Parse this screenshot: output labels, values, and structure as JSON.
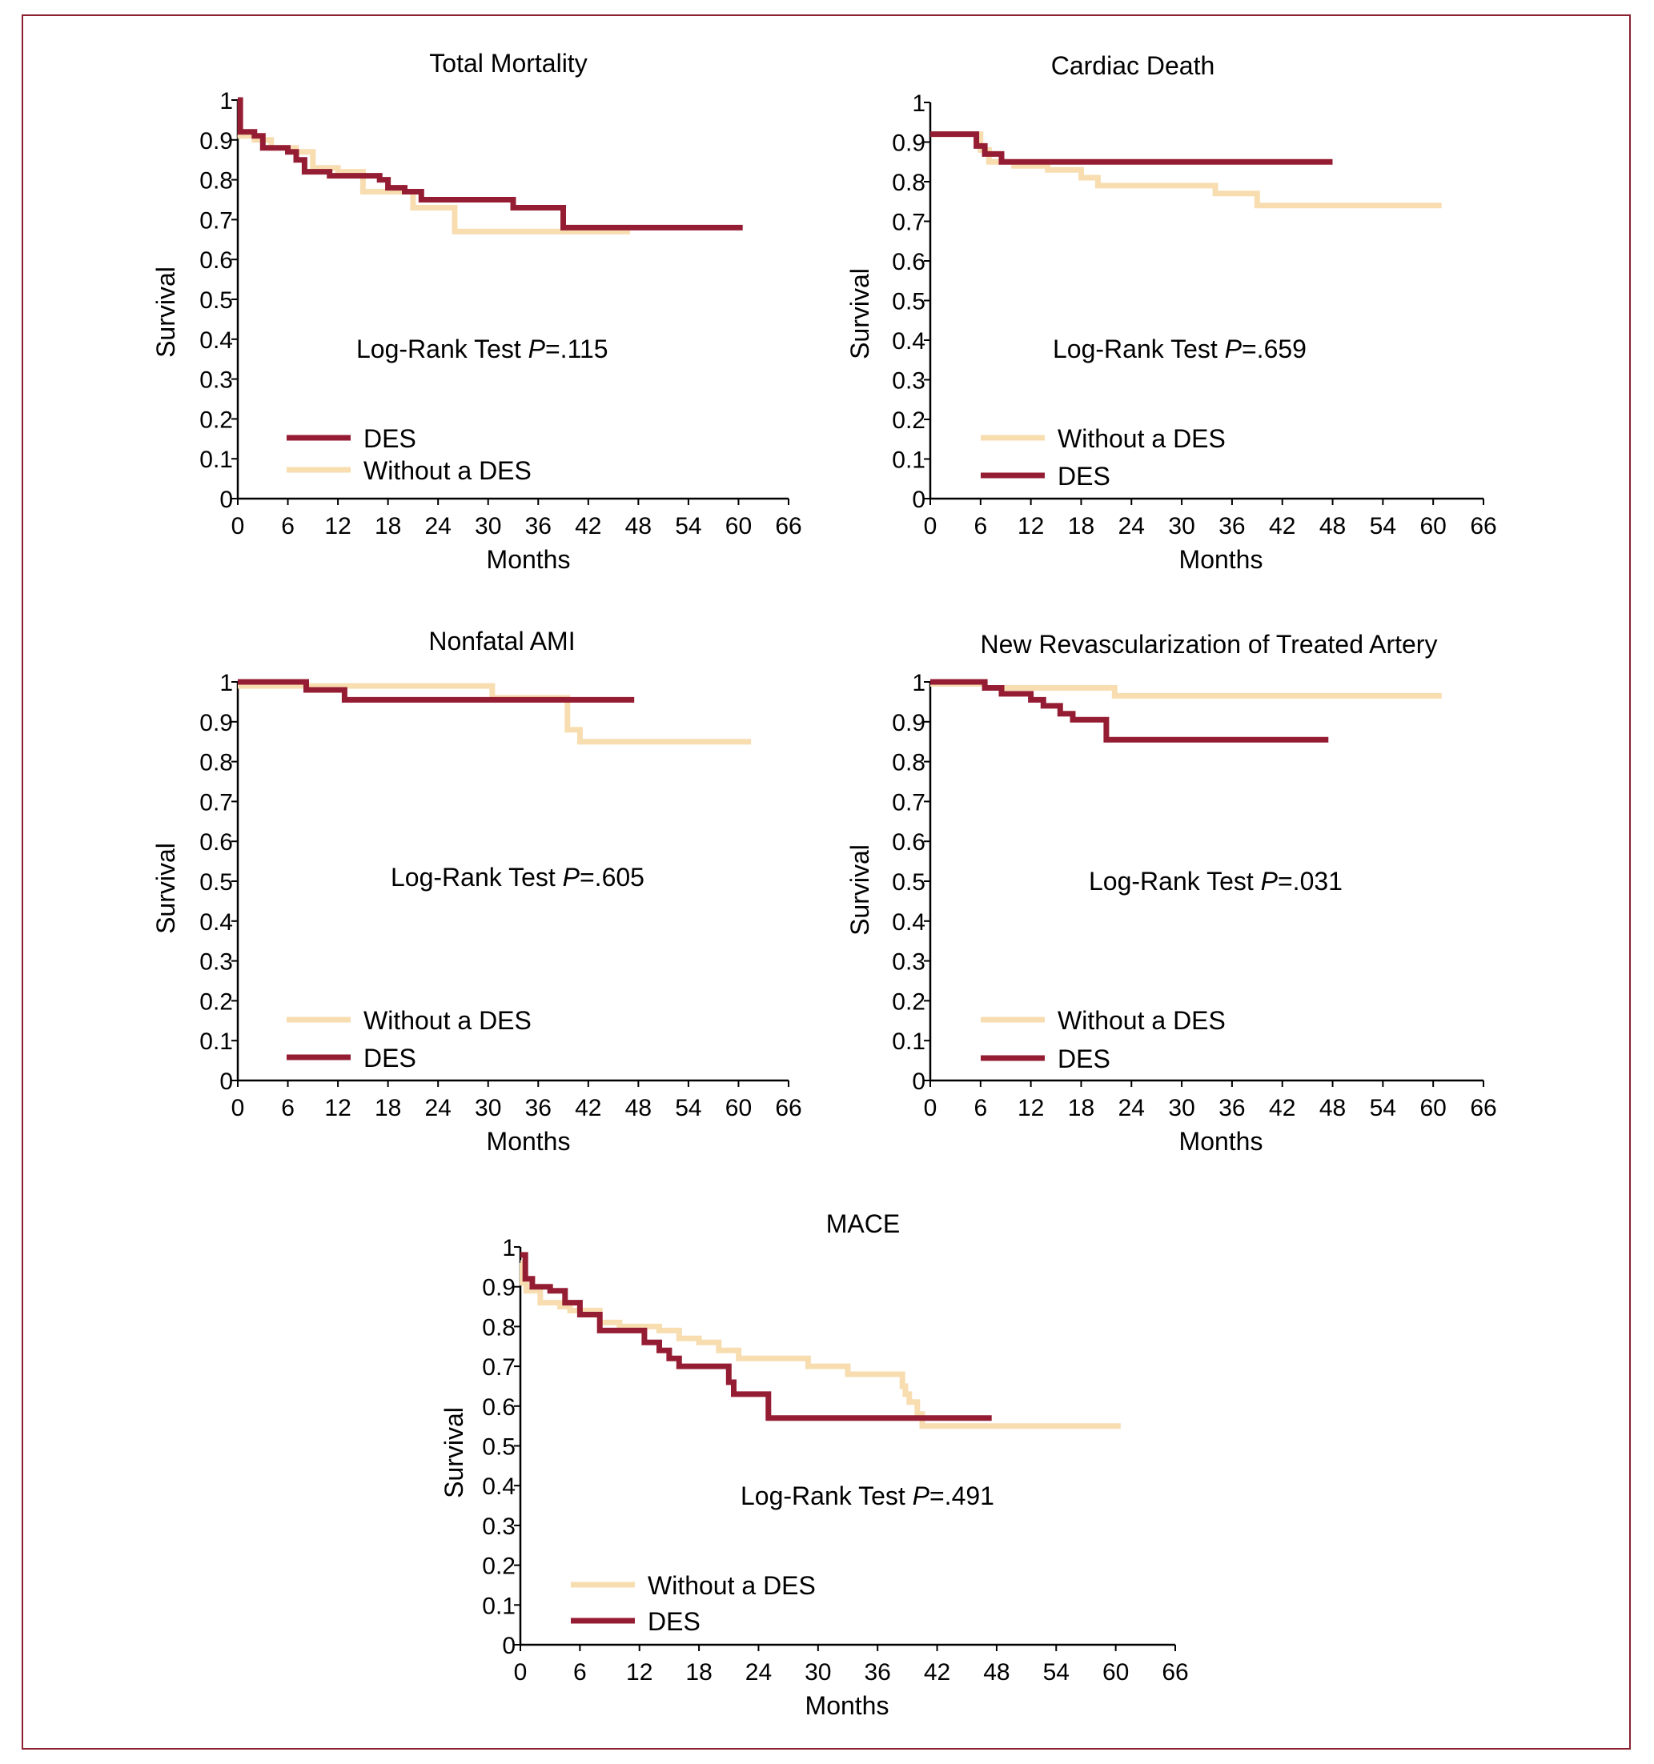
{
  "figure": {
    "border_color": "#8b2131",
    "series_colors": {
      "DES": "#951d33",
      "Without a DES": "#f7ddb0"
    }
  },
  "chart_data": [
    {
      "id": "total-mortality",
      "type": "line",
      "step": true,
      "title": "Total Mortality",
      "xlabel": "Months",
      "ylabel": "Survival",
      "xlim": [
        0,
        66
      ],
      "ylim": [
        0,
        1
      ],
      "xticks": [
        0,
        6,
        12,
        18,
        24,
        30,
        36,
        42,
        48,
        54,
        60,
        66
      ],
      "yticks": [
        "0",
        "0.1",
        "0.2",
        "0.3",
        "0.4",
        "0.5",
        "0.6",
        "0.7",
        "0.8",
        "0.9",
        "1"
      ],
      "annotation": {
        "prefix": "Log-Rank Test ",
        "p": "P",
        "value": "=.115"
      },
      "legend": {
        "placement": "bottom-left",
        "order": [
          "DES",
          "Without a DES"
        ]
      },
      "series": [
        {
          "name": "Without a DES",
          "x": [
            0,
            0.3,
            2,
            4,
            7,
            9,
            12,
            15,
            17,
            19,
            21,
            26,
            32,
            47
          ],
          "y": [
            1,
            0.91,
            0.9,
            0.88,
            0.87,
            0.83,
            0.82,
            0.77,
            0.77,
            0.77,
            0.73,
            0.67,
            0.67,
            0.67
          ]
        },
        {
          "name": "DES",
          "x": [
            0,
            0.3,
            2,
            3,
            6,
            7,
            8,
            11,
            17,
            18,
            20,
            22,
            33,
            39,
            60.5
          ],
          "y": [
            1,
            0.92,
            0.91,
            0.88,
            0.87,
            0.85,
            0.82,
            0.81,
            0.8,
            0.78,
            0.77,
            0.75,
            0.73,
            0.68,
            0.68
          ]
        }
      ]
    },
    {
      "id": "cardiac-death",
      "type": "line",
      "step": true,
      "title": "Cardiac Death",
      "xlabel": "Months",
      "ylabel": "Survival",
      "xlim": [
        0,
        66
      ],
      "ylim": [
        0,
        1
      ],
      "xticks": [
        0,
        6,
        12,
        18,
        24,
        30,
        36,
        42,
        48,
        54,
        60,
        66
      ],
      "yticks": [
        "0",
        "0.1",
        "0.2",
        "0.3",
        "0.4",
        "0.5",
        "0.6",
        "0.7",
        "0.8",
        "0.9",
        "1"
      ],
      "annotation": {
        "prefix": "Log-Rank Test ",
        "p": "P",
        "value": "=.659"
      },
      "legend": {
        "placement": "bottom-left",
        "order": [
          "Without a DES",
          "DES"
        ]
      },
      "series": [
        {
          "name": "Without a DES",
          "x": [
            0,
            6,
            7,
            10,
            14,
            18,
            20,
            34,
            39,
            61
          ],
          "y": [
            0.92,
            0.88,
            0.85,
            0.84,
            0.83,
            0.81,
            0.79,
            0.77,
            0.74,
            0.74
          ]
        },
        {
          "name": "DES",
          "x": [
            0,
            5.5,
            6.5,
            8.5,
            48
          ],
          "y": [
            0.92,
            0.89,
            0.87,
            0.85,
            0.85
          ]
        }
      ]
    },
    {
      "id": "nonfatal-ami",
      "type": "line",
      "step": true,
      "title": "Nonfatal AMI",
      "xlabel": "Months",
      "ylabel": "Survival",
      "xlim": [
        0,
        66
      ],
      "ylim": [
        0,
        1
      ],
      "xticks": [
        0,
        6,
        12,
        18,
        24,
        30,
        36,
        42,
        48,
        54,
        60,
        66
      ],
      "yticks": [
        "0",
        "0.1",
        "0.2",
        "0.3",
        "0.4",
        "0.5",
        "0.6",
        "0.7",
        "0.8",
        "0.9",
        "1"
      ],
      "annotation": {
        "prefix": "Log-Rank Test ",
        "p": "P",
        "value": "=.605"
      },
      "legend": {
        "placement": "bottom-left",
        "order": [
          "Without a DES",
          "DES"
        ]
      },
      "series": [
        {
          "name": "Without a DES",
          "x": [
            0,
            8.5,
            30.5,
            39.5,
            41,
            61.5
          ],
          "y": [
            0.99,
            0.99,
            0.96,
            0.88,
            0.85,
            0.85
          ]
        },
        {
          "name": "DES",
          "x": [
            0,
            8.2,
            12.8,
            47.5
          ],
          "y": [
            1,
            0.98,
            0.955,
            0.955
          ]
        }
      ]
    },
    {
      "id": "new-revascularization",
      "type": "line",
      "step": true,
      "title": "New Revascularization of Treated Artery",
      "xlabel": "Months",
      "ylabel": "Survival",
      "xlim": [
        0,
        66
      ],
      "ylim": [
        0,
        1
      ],
      "xticks": [
        0,
        6,
        12,
        18,
        24,
        30,
        36,
        42,
        48,
        54,
        60,
        66
      ],
      "yticks": [
        "0",
        "0.1",
        "0.2",
        "0.3",
        "0.4",
        "0.5",
        "0.6",
        "0.7",
        "0.8",
        "0.9",
        "1"
      ],
      "annotation": {
        "prefix": "Log-Rank Test ",
        "p": "P",
        "value": "=.031"
      },
      "legend": {
        "placement": "bottom-left",
        "order": [
          "Without a DES",
          "DES"
        ]
      },
      "series": [
        {
          "name": "Without a DES",
          "x": [
            0,
            6.5,
            22,
            61
          ],
          "y": [
            0.995,
            0.985,
            0.965,
            0.965
          ]
        },
        {
          "name": "DES",
          "x": [
            0,
            6.5,
            8.5,
            12,
            13.5,
            15.5,
            17,
            21,
            47.5
          ],
          "y": [
            1,
            0.985,
            0.97,
            0.955,
            0.94,
            0.92,
            0.905,
            0.855,
            0.855
          ]
        }
      ]
    },
    {
      "id": "mace",
      "type": "line",
      "step": true,
      "title": "MACE",
      "xlabel": "Months",
      "ylabel": "Survival",
      "xlim": [
        0,
        66
      ],
      "ylim": [
        0,
        1
      ],
      "xticks": [
        0,
        6,
        12,
        18,
        24,
        30,
        36,
        42,
        48,
        54,
        60,
        66
      ],
      "yticks": [
        "0",
        "0.1",
        "0.2",
        "0.3",
        "0.4",
        "0.5",
        "0.6",
        "0.7",
        "0.8",
        "0.9",
        "1"
      ],
      "annotation": {
        "prefix": "Log-Rank Test ",
        "p": "P",
        "value": "=.491"
      },
      "legend": {
        "placement": "bottom-left",
        "order": [
          "Without a DES",
          "DES"
        ]
      },
      "series": [
        {
          "name": "Without a DES",
          "x": [
            0,
            0.2,
            0.6,
            2,
            4,
            5,
            8,
            10,
            14,
            16,
            18,
            20,
            22,
            29,
            33,
            38.5,
            38.8,
            39.2,
            40,
            40.5,
            60.5
          ],
          "y": [
            0.96,
            0.91,
            0.89,
            0.86,
            0.85,
            0.84,
            0.81,
            0.8,
            0.79,
            0.77,
            0.76,
            0.74,
            0.72,
            0.7,
            0.68,
            0.65,
            0.63,
            0.61,
            0.58,
            0.55,
            0.55
          ]
        },
        {
          "name": "DES",
          "x": [
            0,
            0.5,
            1.2,
            3,
            4.5,
            6,
            8,
            12.5,
            14,
            15,
            16,
            17,
            21,
            21.5,
            25,
            47.5
          ],
          "y": [
            0.98,
            0.92,
            0.9,
            0.89,
            0.86,
            0.83,
            0.79,
            0.76,
            0.74,
            0.72,
            0.7,
            0.7,
            0.66,
            0.63,
            0.57,
            0.57
          ]
        }
      ]
    }
  ]
}
